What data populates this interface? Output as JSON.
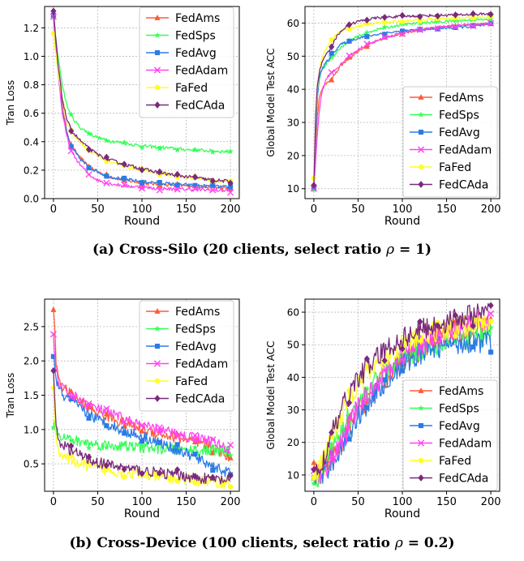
{
  "captions": [
    {
      "prefix": "(a) Cross-Silo (20 clients, select ratio ",
      "symbol": "ρ",
      "suffix": " = 1)"
    },
    {
      "prefix": "(b) Cross-Device (100 clients, select ratio ",
      "symbol": "ρ",
      "suffix": " = 0.2)"
    }
  ],
  "series_styles": [
    {
      "name": "FedAms",
      "color": "#ff5a36",
      "marker": "triangle"
    },
    {
      "name": "FedSps",
      "color": "#33ff55",
      "marker": "star"
    },
    {
      "name": "FedAvg",
      "color": "#2b7be6",
      "marker": "square"
    },
    {
      "name": "FedAdam",
      "color": "#ff44ee",
      "marker": "x"
    },
    {
      "name": "FaFed",
      "color": "#ffff22",
      "marker": "circle"
    },
    {
      "name": "FedCAda",
      "color": "#7a2a7a",
      "marker": "diamond"
    }
  ],
  "chart_data": [
    {
      "type": "line",
      "id": "a-loss",
      "title": "",
      "xlabel": "Round",
      "ylabel": "Tran Loss",
      "xlim": [
        -10,
        210
      ],
      "ylim": [
        0,
        1.35
      ],
      "xticks": [
        0,
        50,
        100,
        150,
        200
      ],
      "yticks": [
        0.0,
        0.2,
        0.4,
        0.6,
        0.8,
        1.0,
        1.2
      ],
      "ytick_labels": [
        "0.0",
        "0.2",
        "0.4",
        "0.6",
        "0.8",
        "1.0",
        "1.2"
      ],
      "legend": "top-right",
      "noise": 0.012,
      "x": [
        0,
        5,
        10,
        15,
        20,
        30,
        40,
        50,
        60,
        80,
        100,
        120,
        150,
        180,
        200
      ],
      "series": [
        {
          "name": "FedAms",
          "values": [
            1.3,
            0.95,
            0.65,
            0.48,
            0.37,
            0.29,
            0.22,
            0.19,
            0.16,
            0.13,
            0.11,
            0.1,
            0.09,
            0.08,
            0.07
          ]
        },
        {
          "name": "FedSps",
          "values": [
            1.27,
            1.0,
            0.8,
            0.66,
            0.58,
            0.5,
            0.46,
            0.43,
            0.41,
            0.39,
            0.37,
            0.36,
            0.345,
            0.335,
            0.33
          ]
        },
        {
          "name": "FedAvg",
          "values": [
            1.3,
            0.92,
            0.62,
            0.46,
            0.36,
            0.28,
            0.22,
            0.19,
            0.16,
            0.135,
            0.12,
            0.11,
            0.095,
            0.085,
            0.08
          ]
        },
        {
          "name": "FedAdam",
          "values": [
            1.28,
            0.9,
            0.6,
            0.44,
            0.33,
            0.24,
            0.17,
            0.13,
            0.11,
            0.09,
            0.08,
            0.07,
            0.065,
            0.06,
            0.055
          ]
        },
        {
          "name": "FaFed",
          "values": [
            1.15,
            0.9,
            0.7,
            0.56,
            0.47,
            0.4,
            0.34,
            0.3,
            0.27,
            0.23,
            0.2,
            0.18,
            0.15,
            0.13,
            0.12
          ]
        },
        {
          "name": "FedCAda",
          "values": [
            1.31,
            0.95,
            0.7,
            0.56,
            0.48,
            0.41,
            0.35,
            0.31,
            0.28,
            0.24,
            0.21,
            0.18,
            0.155,
            0.13,
            0.12
          ]
        }
      ]
    },
    {
      "type": "line",
      "id": "a-acc",
      "title": "",
      "xlabel": "Round",
      "ylabel": "Global Model Test ACC",
      "xlim": [
        -10,
        210
      ],
      "ylim": [
        7,
        65
      ],
      "xticks": [
        0,
        50,
        100,
        150,
        200
      ],
      "yticks": [
        10,
        20,
        30,
        40,
        50,
        60
      ],
      "ytick_labels": [
        "10",
        "20",
        "30",
        "40",
        "50",
        "60"
      ],
      "legend": "bottom-right",
      "noise": 0.4,
      "x": [
        0,
        2,
        4,
        6,
        8,
        10,
        15,
        20,
        25,
        30,
        40,
        50,
        60,
        70,
        80,
        100,
        120,
        150,
        180,
        200
      ],
      "series": [
        {
          "name": "FedAms",
          "values": [
            10,
            22,
            32,
            37,
            39,
            40.5,
            42,
            43,
            45,
            47,
            49.5,
            51.5,
            53,
            54.5,
            55.5,
            57,
            58,
            59,
            59.5,
            60
          ]
        },
        {
          "name": "FedSps",
          "values": [
            10,
            27,
            37,
            43,
            45,
            46,
            48,
            49.5,
            51,
            52.5,
            54.5,
            56,
            57,
            58,
            58.5,
            59.5,
            60,
            60.5,
            61,
            61
          ]
        },
        {
          "name": "FedAvg",
          "values": [
            10,
            25,
            38,
            43,
            45,
            46.5,
            48.5,
            50.5,
            52,
            53.5,
            54.5,
            55.5,
            56,
            56.5,
            57,
            57.5,
            58,
            58.5,
            59,
            59.5
          ]
        },
        {
          "name": "FedAdam",
          "values": [
            10,
            18,
            27,
            33,
            37,
            40,
            43.5,
            45,
            46,
            47.5,
            50,
            52,
            53.5,
            54.5,
            55.5,
            57,
            58,
            59,
            59.5,
            59.8
          ]
        },
        {
          "name": "FaFed",
          "values": [
            13,
            30,
            40,
            45,
            48,
            50,
            53,
            55,
            56.5,
            57.5,
            58.5,
            59,
            59.5,
            60,
            60.3,
            60.6,
            61,
            61.3,
            61.6,
            61.8
          ]
        },
        {
          "name": "FedCAda",
          "values": [
            11,
            32,
            41,
            45,
            47,
            48.5,
            51,
            53,
            55.5,
            57.5,
            59.5,
            60.5,
            61,
            61.5,
            61.8,
            62,
            62.2,
            62.4,
            62.6,
            62.8
          ]
        }
      ]
    },
    {
      "type": "line",
      "id": "b-loss",
      "title": "",
      "xlabel": "Round",
      "ylabel": "Tran Loss",
      "xlim": [
        -10,
        210
      ],
      "ylim": [
        0.1,
        2.9
      ],
      "xticks": [
        0,
        50,
        100,
        150,
        200
      ],
      "yticks": [
        0.5,
        1.0,
        1.5,
        2.0,
        2.5
      ],
      "ytick_labels": [
        "0.5",
        "1.0",
        "1.5",
        "2.0",
        "2.5"
      ],
      "legend": "top-right",
      "noise": 0.08,
      "x": [
        0,
        3,
        6,
        10,
        20,
        30,
        50,
        75,
        100,
        125,
        150,
        175,
        200
      ],
      "series": [
        {
          "name": "FedAms",
          "values": [
            2.78,
            2.0,
            1.75,
            1.62,
            1.5,
            1.4,
            1.25,
            1.12,
            1.0,
            0.92,
            0.85,
            0.75,
            0.6
          ]
        },
        {
          "name": "FedSps",
          "values": [
            1.1,
            1.0,
            0.95,
            0.9,
            0.85,
            0.82,
            0.78,
            0.76,
            0.74,
            0.72,
            0.7,
            0.69,
            0.68
          ]
        },
        {
          "name": "FedAvg",
          "values": [
            2.05,
            1.75,
            1.6,
            1.5,
            1.42,
            1.3,
            1.15,
            1.0,
            0.9,
            0.78,
            0.65,
            0.5,
            0.35
          ]
        },
        {
          "name": "FedAdam",
          "values": [
            2.38,
            1.85,
            1.7,
            1.6,
            1.52,
            1.42,
            1.3,
            1.18,
            1.05,
            0.98,
            0.9,
            0.85,
            0.7
          ]
        },
        {
          "name": "FaFed",
          "values": [
            1.62,
            0.85,
            0.7,
            0.62,
            0.55,
            0.5,
            0.43,
            0.38,
            0.34,
            0.3,
            0.27,
            0.24,
            0.22
          ]
        },
        {
          "name": "FedCAda",
          "values": [
            1.85,
            1.0,
            0.85,
            0.78,
            0.7,
            0.62,
            0.52,
            0.45,
            0.4,
            0.36,
            0.32,
            0.28,
            0.25
          ]
        }
      ]
    },
    {
      "type": "line",
      "id": "b-acc",
      "title": "",
      "xlabel": "Round",
      "ylabel": "Global Model Test ACC",
      "xlim": [
        -10,
        210
      ],
      "ylim": [
        5,
        64
      ],
      "xticks": [
        0,
        50,
        100,
        150,
        200
      ],
      "yticks": [
        10,
        20,
        30,
        40,
        50,
        60
      ],
      "ytick_labels": [
        "10",
        "20",
        "30",
        "40",
        "50",
        "60"
      ],
      "legend": "bottom-right",
      "noise": 3.5,
      "x": [
        0,
        5,
        10,
        20,
        30,
        40,
        50,
        75,
        100,
        125,
        150,
        175,
        200
      ],
      "series": [
        {
          "name": "FedAms",
          "values": [
            12,
            11,
            11,
            15,
            19,
            25,
            30,
            38,
            45,
            49,
            53,
            55,
            57
          ]
        },
        {
          "name": "FedSps",
          "values": [
            7,
            10,
            12,
            18,
            23,
            28,
            32,
            40,
            46,
            49,
            51,
            52,
            53
          ]
        },
        {
          "name": "FedAvg",
          "values": [
            10,
            10,
            10,
            14,
            18,
            23,
            28,
            37,
            44,
            48,
            50,
            51,
            51
          ]
        },
        {
          "name": "FedAdam",
          "values": [
            10,
            10,
            11,
            15,
            19,
            25,
            31,
            40,
            47,
            51,
            54,
            56,
            58
          ]
        },
        {
          "name": "FaFed",
          "values": [
            10,
            11,
            14,
            22,
            28,
            34,
            38,
            45,
            50,
            53,
            55,
            56,
            57
          ]
        },
        {
          "name": "FedCAda",
          "values": [
            10,
            11,
            14,
            22,
            29,
            35,
            40,
            47,
            52,
            55,
            57,
            59,
            60
          ]
        }
      ]
    }
  ]
}
